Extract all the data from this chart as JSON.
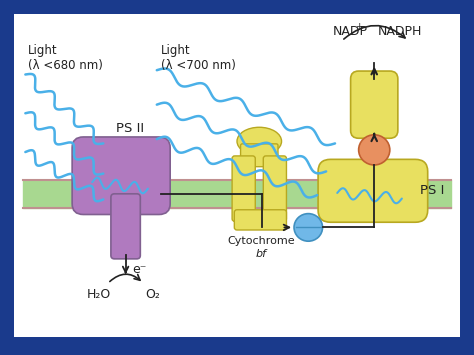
{
  "bg_outer": "#1a3a8c",
  "bg_inner": "#ffffff",
  "membrane_color": "#a8d890",
  "membrane_border_top": "#c09090",
  "membrane_border_bot": "#c09090",
  "psii_color": "#b07abf",
  "psii_edge": "#806090",
  "psii_label": "PS II",
  "psi_color": "#e8e060",
  "psi_edge": "#b8a820",
  "psi_label": "PS I",
  "cytb_color": "#e8e060",
  "cytb_edge": "#b8a820",
  "cytb_label_line1": "Cytochrome",
  "cytb_label_line2": "bf",
  "electron_color": "#70b8e8",
  "electron_edge": "#4090c0",
  "ferredoxin_color": "#e89060",
  "ferredoxin_edge": "#c06030",
  "light1_label": "Light\n(λ <680 nm)",
  "light2_label": "Light\n(λ <700 nm)",
  "nadpp_label": "NADP",
  "nadph_label": "NADPH",
  "h2o_label": "H₂O",
  "o2_label": "O₂",
  "elec_label": "e⁻",
  "wave_color": "#4ab0e8",
  "arrow_color": "#222222",
  "text_color": "#222222"
}
